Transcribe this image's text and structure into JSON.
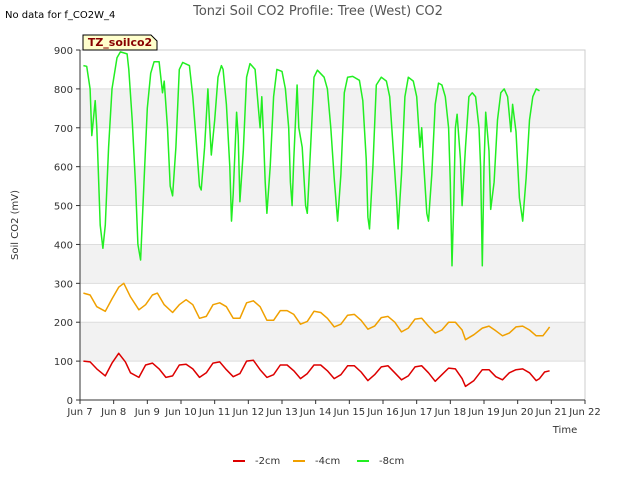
{
  "chart_data": {
    "type": "line",
    "title": "Tonzi Soil CO2 Profile: Tree (West) CO2",
    "no_data_note": "No data for f_CO2W_4",
    "badge": "TZ_soilco2",
    "xlabel": "Time",
    "ylabel": "Soil CO2 (mV)",
    "xlim": [
      7,
      22
    ],
    "ylim": [
      0,
      900
    ],
    "x_ticks": [
      7,
      8,
      9,
      10,
      11,
      12,
      13,
      14,
      15,
      16,
      17,
      18,
      19,
      20,
      21,
      22
    ],
    "x_tick_labels": [
      "Jun 7",
      "Jun 8",
      "Jun 9",
      "Jun 10",
      "Jun 11",
      "Jun 12",
      "Jun 13",
      "Jun 14",
      "Jun 15",
      "Jun 16",
      "Jun 17",
      "Jun 18",
      "Jun 19",
      "Jun 20",
      "Jun 21",
      "Jun 22"
    ],
    "y_ticks": [
      0,
      100,
      200,
      300,
      400,
      500,
      600,
      700,
      800,
      900
    ],
    "grid": true,
    "legend_position": "bottom-center",
    "series": [
      {
        "name": "-2cm",
        "color": "#dd0000",
        "points": [
          [
            7.1,
            100
          ],
          [
            7.3,
            98
          ],
          [
            7.5,
            80
          ],
          [
            7.75,
            62
          ],
          [
            7.95,
            95
          ],
          [
            8.15,
            120
          ],
          [
            8.35,
            98
          ],
          [
            8.5,
            70
          ],
          [
            8.75,
            58
          ],
          [
            8.95,
            90
          ],
          [
            9.15,
            95
          ],
          [
            9.35,
            80
          ],
          [
            9.55,
            58
          ],
          [
            9.75,
            62
          ],
          [
            9.95,
            90
          ],
          [
            10.15,
            92
          ],
          [
            10.35,
            80
          ],
          [
            10.55,
            58
          ],
          [
            10.75,
            70
          ],
          [
            10.95,
            95
          ],
          [
            11.15,
            98
          ],
          [
            11.35,
            78
          ],
          [
            11.55,
            60
          ],
          [
            11.75,
            68
          ],
          [
            11.95,
            100
          ],
          [
            12.15,
            102
          ],
          [
            12.35,
            78
          ],
          [
            12.55,
            58
          ],
          [
            12.75,
            65
          ],
          [
            12.95,
            90
          ],
          [
            13.15,
            90
          ],
          [
            13.35,
            75
          ],
          [
            13.55,
            55
          ],
          [
            13.75,
            68
          ],
          [
            13.95,
            90
          ],
          [
            14.15,
            90
          ],
          [
            14.35,
            75
          ],
          [
            14.55,
            55
          ],
          [
            14.75,
            65
          ],
          [
            14.95,
            88
          ],
          [
            15.15,
            88
          ],
          [
            15.35,
            72
          ],
          [
            15.55,
            50
          ],
          [
            15.75,
            65
          ],
          [
            15.95,
            85
          ],
          [
            16.15,
            88
          ],
          [
            16.35,
            70
          ],
          [
            16.55,
            52
          ],
          [
            16.75,
            62
          ],
          [
            16.95,
            85
          ],
          [
            17.15,
            88
          ],
          [
            17.35,
            70
          ],
          [
            17.55,
            48
          ],
          [
            17.75,
            65
          ],
          [
            17.95,
            82
          ],
          [
            18.15,
            80
          ],
          [
            18.35,
            55
          ],
          [
            18.45,
            35
          ],
          [
            18.7,
            50
          ],
          [
            18.95,
            78
          ],
          [
            19.15,
            78
          ],
          [
            19.35,
            60
          ],
          [
            19.55,
            52
          ],
          [
            19.75,
            70
          ],
          [
            19.95,
            78
          ],
          [
            20.15,
            80
          ],
          [
            20.35,
            70
          ],
          [
            20.55,
            50
          ],
          [
            20.65,
            55
          ],
          [
            20.8,
            72
          ],
          [
            20.95,
            75
          ]
        ]
      },
      {
        "name": "-4cm",
        "color": "#f0a000",
        "points": [
          [
            7.1,
            275
          ],
          [
            7.3,
            270
          ],
          [
            7.5,
            240
          ],
          [
            7.75,
            228
          ],
          [
            7.95,
            260
          ],
          [
            8.15,
            290
          ],
          [
            8.3,
            300
          ],
          [
            8.5,
            265
          ],
          [
            8.75,
            232
          ],
          [
            8.95,
            245
          ],
          [
            9.15,
            270
          ],
          [
            9.3,
            275
          ],
          [
            9.5,
            245
          ],
          [
            9.75,
            225
          ],
          [
            9.95,
            245
          ],
          [
            10.15,
            258
          ],
          [
            10.35,
            245
          ],
          [
            10.55,
            210
          ],
          [
            10.75,
            215
          ],
          [
            10.95,
            245
          ],
          [
            11.15,
            250
          ],
          [
            11.35,
            240
          ],
          [
            11.55,
            210
          ],
          [
            11.75,
            210
          ],
          [
            11.95,
            250
          ],
          [
            12.15,
            255
          ],
          [
            12.35,
            240
          ],
          [
            12.55,
            205
          ],
          [
            12.75,
            205
          ],
          [
            12.95,
            230
          ],
          [
            13.15,
            230
          ],
          [
            13.35,
            220
          ],
          [
            13.55,
            195
          ],
          [
            13.75,
            202
          ],
          [
            13.95,
            228
          ],
          [
            14.15,
            225
          ],
          [
            14.35,
            210
          ],
          [
            14.55,
            188
          ],
          [
            14.75,
            195
          ],
          [
            14.95,
            218
          ],
          [
            15.15,
            220
          ],
          [
            15.35,
            205
          ],
          [
            15.55,
            182
          ],
          [
            15.75,
            190
          ],
          [
            15.95,
            212
          ],
          [
            16.15,
            215
          ],
          [
            16.35,
            200
          ],
          [
            16.55,
            175
          ],
          [
            16.75,
            185
          ],
          [
            16.95,
            208
          ],
          [
            17.15,
            210
          ],
          [
            17.35,
            190
          ],
          [
            17.55,
            172
          ],
          [
            17.75,
            180
          ],
          [
            17.95,
            200
          ],
          [
            18.15,
            200
          ],
          [
            18.35,
            180
          ],
          [
            18.45,
            155
          ],
          [
            18.7,
            168
          ],
          [
            18.95,
            185
          ],
          [
            19.15,
            190
          ],
          [
            19.35,
            178
          ],
          [
            19.55,
            165
          ],
          [
            19.75,
            172
          ],
          [
            19.95,
            188
          ],
          [
            20.15,
            190
          ],
          [
            20.35,
            180
          ],
          [
            20.55,
            165
          ],
          [
            20.75,
            165
          ],
          [
            20.9,
            182
          ],
          [
            20.95,
            188
          ]
        ]
      },
      {
        "name": "-8cm",
        "color": "#22ee22",
        "points": [
          [
            7.1,
            860
          ],
          [
            7.2,
            858
          ],
          [
            7.3,
            800
          ],
          [
            7.35,
            680
          ],
          [
            7.45,
            770
          ],
          [
            7.5,
            700
          ],
          [
            7.6,
            450
          ],
          [
            7.68,
            390
          ],
          [
            7.75,
            450
          ],
          [
            7.85,
            650
          ],
          [
            7.95,
            800
          ],
          [
            8.1,
            880
          ],
          [
            8.2,
            895
          ],
          [
            8.4,
            890
          ],
          [
            8.45,
            850
          ],
          [
            8.55,
            720
          ],
          [
            8.65,
            550
          ],
          [
            8.72,
            400
          ],
          [
            8.8,
            360
          ],
          [
            8.9,
            560
          ],
          [
            9.0,
            750
          ],
          [
            9.1,
            840
          ],
          [
            9.2,
            870
          ],
          [
            9.35,
            870
          ],
          [
            9.45,
            790
          ],
          [
            9.5,
            820
          ],
          [
            9.6,
            700
          ],
          [
            9.68,
            550
          ],
          [
            9.75,
            525
          ],
          [
            9.85,
            650
          ],
          [
            9.95,
            850
          ],
          [
            10.05,
            868
          ],
          [
            10.25,
            860
          ],
          [
            10.35,
            780
          ],
          [
            10.45,
            670
          ],
          [
            10.55,
            550
          ],
          [
            10.6,
            540
          ],
          [
            10.7,
            650
          ],
          [
            10.8,
            800
          ],
          [
            10.85,
            710
          ],
          [
            10.9,
            630
          ],
          [
            11.0,
            720
          ],
          [
            11.1,
            830
          ],
          [
            11.2,
            860
          ],
          [
            11.25,
            850
          ],
          [
            11.35,
            760
          ],
          [
            11.45,
            600
          ],
          [
            11.5,
            460
          ],
          [
            11.55,
            530
          ],
          [
            11.65,
            740
          ],
          [
            11.7,
            680
          ],
          [
            11.75,
            510
          ],
          [
            11.85,
            640
          ],
          [
            11.95,
            830
          ],
          [
            12.05,
            865
          ],
          [
            12.2,
            850
          ],
          [
            12.3,
            750
          ],
          [
            12.35,
            700
          ],
          [
            12.4,
            780
          ],
          [
            12.45,
            680
          ],
          [
            12.5,
            560
          ],
          [
            12.55,
            480
          ],
          [
            12.65,
            600
          ],
          [
            12.75,
            780
          ],
          [
            12.85,
            850
          ],
          [
            13.0,
            845
          ],
          [
            13.1,
            800
          ],
          [
            13.2,
            700
          ],
          [
            13.25,
            560
          ],
          [
            13.3,
            500
          ],
          [
            13.35,
            620
          ],
          [
            13.45,
            810
          ],
          [
            13.5,
            700
          ],
          [
            13.6,
            650
          ],
          [
            13.7,
            500
          ],
          [
            13.75,
            480
          ],
          [
            13.85,
            650
          ],
          [
            13.95,
            830
          ],
          [
            14.05,
            848
          ],
          [
            14.25,
            830
          ],
          [
            14.35,
            800
          ],
          [
            14.45,
            700
          ],
          [
            14.55,
            570
          ],
          [
            14.65,
            460
          ],
          [
            14.75,
            580
          ],
          [
            14.85,
            790
          ],
          [
            14.95,
            830
          ],
          [
            15.1,
            832
          ],
          [
            15.3,
            822
          ],
          [
            15.4,
            770
          ],
          [
            15.5,
            620
          ],
          [
            15.55,
            470
          ],
          [
            15.6,
            440
          ],
          [
            15.7,
            600
          ],
          [
            15.8,
            810
          ],
          [
            15.95,
            830
          ],
          [
            16.1,
            820
          ],
          [
            16.2,
            780
          ],
          [
            16.3,
            650
          ],
          [
            16.4,
            520
          ],
          [
            16.45,
            440
          ],
          [
            16.55,
            580
          ],
          [
            16.65,
            780
          ],
          [
            16.75,
            830
          ],
          [
            16.9,
            820
          ],
          [
            17.0,
            780
          ],
          [
            17.1,
            650
          ],
          [
            17.15,
            700
          ],
          [
            17.2,
            620
          ],
          [
            17.3,
            480
          ],
          [
            17.35,
            460
          ],
          [
            17.45,
            580
          ],
          [
            17.55,
            760
          ],
          [
            17.65,
            815
          ],
          [
            17.75,
            810
          ],
          [
            17.85,
            780
          ],
          [
            17.95,
            700
          ],
          [
            18.0,
            560
          ],
          [
            18.05,
            345
          ],
          [
            18.1,
            500
          ],
          [
            18.15,
            700
          ],
          [
            18.2,
            735
          ],
          [
            18.3,
            620
          ],
          [
            18.35,
            500
          ],
          [
            18.45,
            650
          ],
          [
            18.55,
            780
          ],
          [
            18.65,
            790
          ],
          [
            18.75,
            780
          ],
          [
            18.85,
            700
          ],
          [
            18.9,
            600
          ],
          [
            18.95,
            345
          ],
          [
            19.0,
            600
          ],
          [
            19.05,
            740
          ],
          [
            19.15,
            640
          ],
          [
            19.2,
            490
          ],
          [
            19.3,
            560
          ],
          [
            19.4,
            720
          ],
          [
            19.5,
            790
          ],
          [
            19.6,
            800
          ],
          [
            19.7,
            780
          ],
          [
            19.8,
            690
          ],
          [
            19.85,
            760
          ],
          [
            19.95,
            690
          ],
          [
            20.05,
            520
          ],
          [
            20.15,
            460
          ],
          [
            20.25,
            570
          ],
          [
            20.35,
            720
          ],
          [
            20.45,
            780
          ],
          [
            20.55,
            800
          ],
          [
            20.65,
            795
          ]
        ]
      }
    ]
  }
}
